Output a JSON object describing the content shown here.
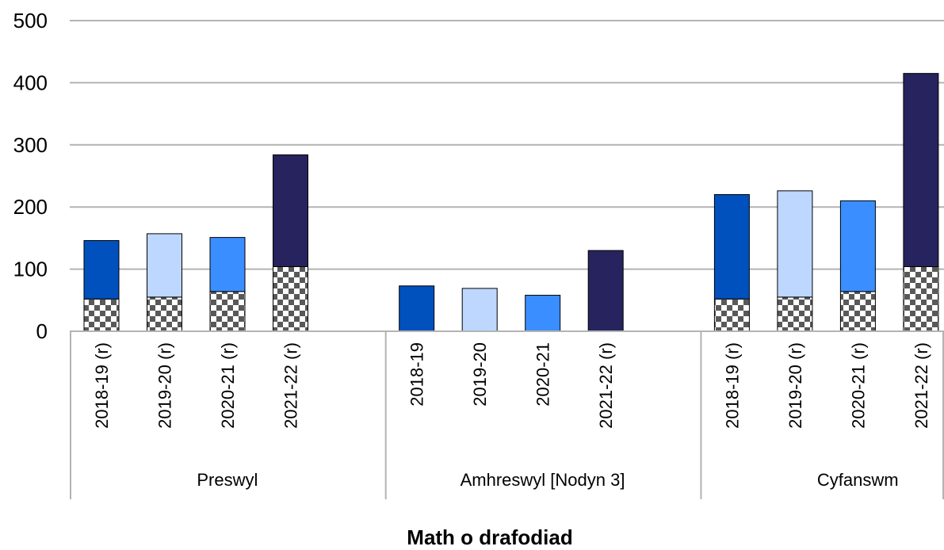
{
  "chart_data": {
    "type": "bar",
    "stacked": true,
    "title": "",
    "ylabel": "",
    "xlabel": "Math o drafodiad",
    "ylim": [
      0,
      500
    ],
    "yticks": [
      0,
      100,
      200,
      300,
      400,
      500
    ],
    "grid": true,
    "legend": "none",
    "groups": [
      {
        "label": "Preswyl",
        "bars": [
          {
            "category": "2018-19 (r)",
            "lower": 52,
            "total": 146,
            "color": "#0050be"
          },
          {
            "category": "2019-20 (r)",
            "lower": 55,
            "total": 157,
            "color": "#bdd7ff"
          },
          {
            "category": "2020-21 (r)",
            "lower": 64,
            "total": 151,
            "color": "#3b8eff"
          },
          {
            "category": "2021-22 (r)",
            "lower": 104,
            "total": 284,
            "color": "#26235e"
          }
        ]
      },
      {
        "label": "Amhreswyl [Nodyn 3]",
        "bars": [
          {
            "category": "2018-19",
            "lower": 0,
            "total": 73,
            "color": "#0050be"
          },
          {
            "category": "2019-20",
            "lower": 0,
            "total": 69,
            "color": "#bdd7ff"
          },
          {
            "category": "2020-21",
            "lower": 0,
            "total": 58,
            "color": "#3b8eff"
          },
          {
            "category": "2021-22 (r)",
            "lower": 0,
            "total": 130,
            "color": "#26235e"
          }
        ]
      },
      {
        "label": "Cyfanswm",
        "bars": [
          {
            "category": "2018-19 (r)",
            "lower": 52,
            "total": 220,
            "color": "#0050be"
          },
          {
            "category": "2019-20 (r)",
            "lower": 55,
            "total": 226,
            "color": "#bdd7ff"
          },
          {
            "category": "2020-21 (r)",
            "lower": 64,
            "total": 210,
            "color": "#3b8eff"
          },
          {
            "category": "2021-22 (r)",
            "lower": 104,
            "total": 415,
            "color": "#26235e"
          }
        ]
      }
    ],
    "colors": {
      "grid": "#b3b3b3",
      "bar_outline": "#000000",
      "pattern_dark": "#595959",
      "pattern_light": "#ffffff"
    }
  }
}
